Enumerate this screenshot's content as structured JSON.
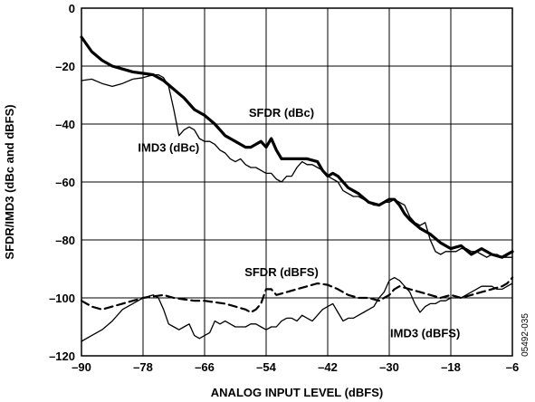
{
  "chart_data": {
    "type": "line",
    "xlabel": "ANALOG INPUT LEVEL (dBFS)",
    "ylabel": "SFDR/IMD3 (dBc and dBFS)",
    "xlim": [
      -90,
      -6
    ],
    "ylim": [
      -120,
      0
    ],
    "xticks": [
      -90,
      -78,
      -66,
      -54,
      -42,
      -30,
      -18,
      -6
    ],
    "yticks": [
      0,
      -20,
      -40,
      -60,
      -80,
      -100,
      -120
    ],
    "grid": true,
    "figure_id": "05492-035",
    "series": [
      {
        "name": "SFDR (dBc)",
        "style": "thick",
        "x": [
          -90,
          -88,
          -86,
          -84,
          -82,
          -80,
          -78,
          -76,
          -74,
          -72,
          -70,
          -68,
          -66,
          -64,
          -62,
          -60,
          -58,
          -57,
          -56,
          -55,
          -54,
          -53,
          -52,
          -51,
          -50,
          -48,
          -46,
          -44,
          -43,
          -42,
          -41,
          -40,
          -38,
          -36,
          -34,
          -32,
          -30,
          -29,
          -28,
          -27,
          -26,
          -24,
          -22,
          -20,
          -18,
          -16,
          -14,
          -12,
          -10,
          -8,
          -6
        ],
        "y": [
          -10,
          -15,
          -18,
          -20,
          -21,
          -22,
          -22.5,
          -23,
          -25,
          -28,
          -31,
          -35,
          -37,
          -40,
          -44,
          -46,
          -48,
          -48,
          -47,
          -46,
          -48,
          -45,
          -49,
          -52,
          -52,
          -52,
          -52,
          -53,
          -56,
          -58,
          -57,
          -58,
          -62,
          -64,
          -67,
          -68,
          -66,
          -66,
          -68,
          -71,
          -73,
          -76,
          -78,
          -81,
          -83,
          -82,
          -85,
          -83,
          -85,
          -86,
          -84
        ]
      },
      {
        "name": "IMD3 (dBc)",
        "style": "thin",
        "x": [
          -90,
          -88,
          -86,
          -84,
          -82,
          -80,
          -78,
          -76,
          -75,
          -74,
          -73,
          -72,
          -71,
          -70,
          -69,
          -68,
          -67,
          -66,
          -65,
          -64,
          -63,
          -62,
          -61,
          -60,
          -59,
          -58,
          -57,
          -56,
          -55,
          -54,
          -53,
          -52,
          -51,
          -50,
          -49,
          -48,
          -47,
          -46,
          -45,
          -44,
          -43,
          -42,
          -41,
          -40,
          -39,
          -38,
          -37,
          -36,
          -35,
          -34,
          -33,
          -32,
          -31,
          -30,
          -29,
          -28,
          -27,
          -26,
          -25,
          -24,
          -23,
          -22,
          -21,
          -20,
          -19,
          -18,
          -17,
          -16,
          -15,
          -14,
          -13,
          -12,
          -11,
          -10,
          -9,
          -8,
          -7,
          -6
        ],
        "y": [
          -25,
          -24.5,
          -26,
          -27,
          -26,
          -24.5,
          -24,
          -23,
          -23,
          -24,
          -27,
          -35,
          -44,
          -42,
          -41,
          -42,
          -45,
          -46,
          -46,
          -47,
          -49,
          -50,
          -52,
          -53,
          -52,
          -54,
          -55,
          -55,
          -56,
          -57,
          -57,
          -59,
          -60,
          -58,
          -58,
          -55,
          -53,
          -54,
          -54,
          -55,
          -56,
          -58,
          -59,
          -60,
          -63,
          -64,
          -65,
          -65,
          -66,
          -67,
          -68,
          -68,
          -67,
          -67,
          -66,
          -67,
          -68,
          -72,
          -74,
          -75,
          -74,
          -80,
          -84,
          -85,
          -84,
          -84,
          -84,
          -83,
          -83,
          -84,
          -84,
          -85,
          -86,
          -85,
          -85,
          -86,
          -86,
          -86
        ]
      },
      {
        "name": "SFDR (dBFS)",
        "style": "dashed",
        "x": [
          -90,
          -88,
          -86,
          -84,
          -82,
          -80,
          -78,
          -76,
          -74,
          -72,
          -70,
          -68,
          -66,
          -64,
          -62,
          -60,
          -58,
          -57,
          -56,
          -55,
          -54,
          -53,
          -52,
          -50,
          -48,
          -46,
          -44,
          -42,
          -40,
          -38,
          -36,
          -34,
          -32,
          -30,
          -29,
          -28,
          -26,
          -24,
          -22,
          -20,
          -18,
          -16,
          -14,
          -12,
          -10,
          -8,
          -7,
          -6
        ],
        "y": [
          -101,
          -103,
          -104,
          -103,
          -102,
          -101,
          -100,
          -99.5,
          -99,
          -100,
          -100.5,
          -101,
          -101,
          -101.5,
          -102,
          -103,
          -104,
          -105,
          -104,
          -102,
          -97,
          -97,
          -99,
          -98,
          -97,
          -96,
          -95,
          -95.5,
          -97,
          -99,
          -100,
          -100,
          -101,
          -99,
          -97,
          -96,
          -97,
          -98,
          -99,
          -100,
          -99,
          -100,
          -99,
          -98,
          -97,
          -96,
          -95,
          -93
        ]
      },
      {
        "name": "IMD3 (dBFS)",
        "style": "thin",
        "x": [
          -90,
          -88,
          -86,
          -84,
          -82,
          -80,
          -78,
          -77,
          -76,
          -75,
          -74,
          -73,
          -72,
          -71,
          -70,
          -69,
          -68,
          -67,
          -66,
          -65,
          -64,
          -63,
          -62,
          -61,
          -60,
          -59,
          -58,
          -57,
          -56,
          -55,
          -54,
          -53,
          -52,
          -51,
          -50,
          -49,
          -48,
          -47,
          -46,
          -45,
          -44,
          -43,
          -42,
          -41,
          -40,
          -39,
          -38,
          -37,
          -36,
          -35,
          -34,
          -33,
          -32,
          -31,
          -30,
          -29,
          -28,
          -27,
          -26,
          -25,
          -24,
          -23,
          -22,
          -21,
          -20,
          -19,
          -18,
          -17,
          -16,
          -15,
          -14,
          -13,
          -12,
          -11,
          -10,
          -9,
          -8,
          -7,
          -6
        ],
        "y": [
          -115,
          -113,
          -111,
          -108,
          -104,
          -102,
          -100,
          -99.5,
          -99,
          -100,
          -104,
          -109,
          -110,
          -111,
          -110,
          -109,
          -113,
          -114,
          -113,
          -112,
          -108,
          -109,
          -108,
          -109,
          -110,
          -110,
          -110,
          -109,
          -109,
          -110,
          -111,
          -110,
          -110,
          -108,
          -107,
          -107,
          -108,
          -106,
          -107,
          -108,
          -106,
          -104,
          -103,
          -102,
          -105,
          -108,
          -107,
          -107,
          -106,
          -105,
          -104,
          -103,
          -100,
          -98,
          -94,
          -93,
          -94,
          -96,
          -98,
          -102,
          -105,
          -103,
          -102,
          -102,
          -101,
          -101,
          -100,
          -100,
          -100,
          -99,
          -98,
          -97,
          -96,
          -96,
          -96,
          -97,
          -97,
          -96,
          -95
        ]
      }
    ],
    "annotations": [
      {
        "text": "SFDR (dBc)",
        "x": -51,
        "y": -36
      },
      {
        "text": "IMD3 (dBc)",
        "x": -73,
        "y": -48
      },
      {
        "text": "SFDR (dBFS)",
        "x": -51,
        "y": -91
      },
      {
        "text": "IMD3 (dBFS)",
        "x": -23,
        "y": -112
      }
    ]
  }
}
